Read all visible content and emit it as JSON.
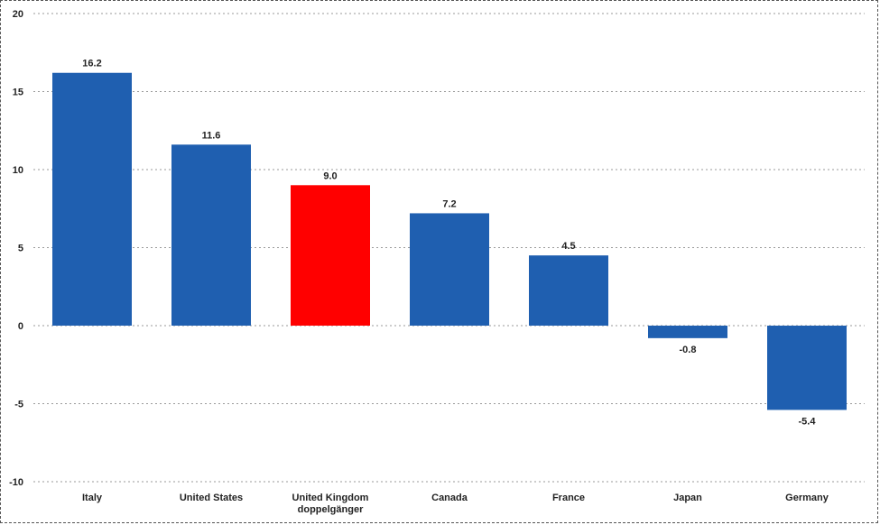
{
  "chart_data": {
    "type": "bar",
    "categories": [
      [
        "Italy"
      ],
      [
        "United States"
      ],
      [
        "United Kingdom",
        "doppelgänger"
      ],
      [
        "Canada"
      ],
      [
        "France"
      ],
      [
        "Japan"
      ],
      [
        "Germany"
      ]
    ],
    "values": [
      16.2,
      11.6,
      9.0,
      7.2,
      4.5,
      -0.8,
      -5.4
    ],
    "value_labels": [
      "16.2",
      "11.6",
      "9.0",
      "7.2",
      "4.5",
      "-0.8",
      "-5.4"
    ],
    "colors": [
      "#1f5fb0",
      "#1f5fb0",
      "#ff0000",
      "#1f5fb0",
      "#1f5fb0",
      "#1f5fb0",
      "#1f5fb0"
    ],
    "ylim": [
      -10,
      20
    ],
    "yticks": [
      20,
      15,
      10,
      5,
      0,
      -5,
      -10
    ],
    "grid": true,
    "title": "",
    "xlabel": "",
    "ylabel": ""
  }
}
